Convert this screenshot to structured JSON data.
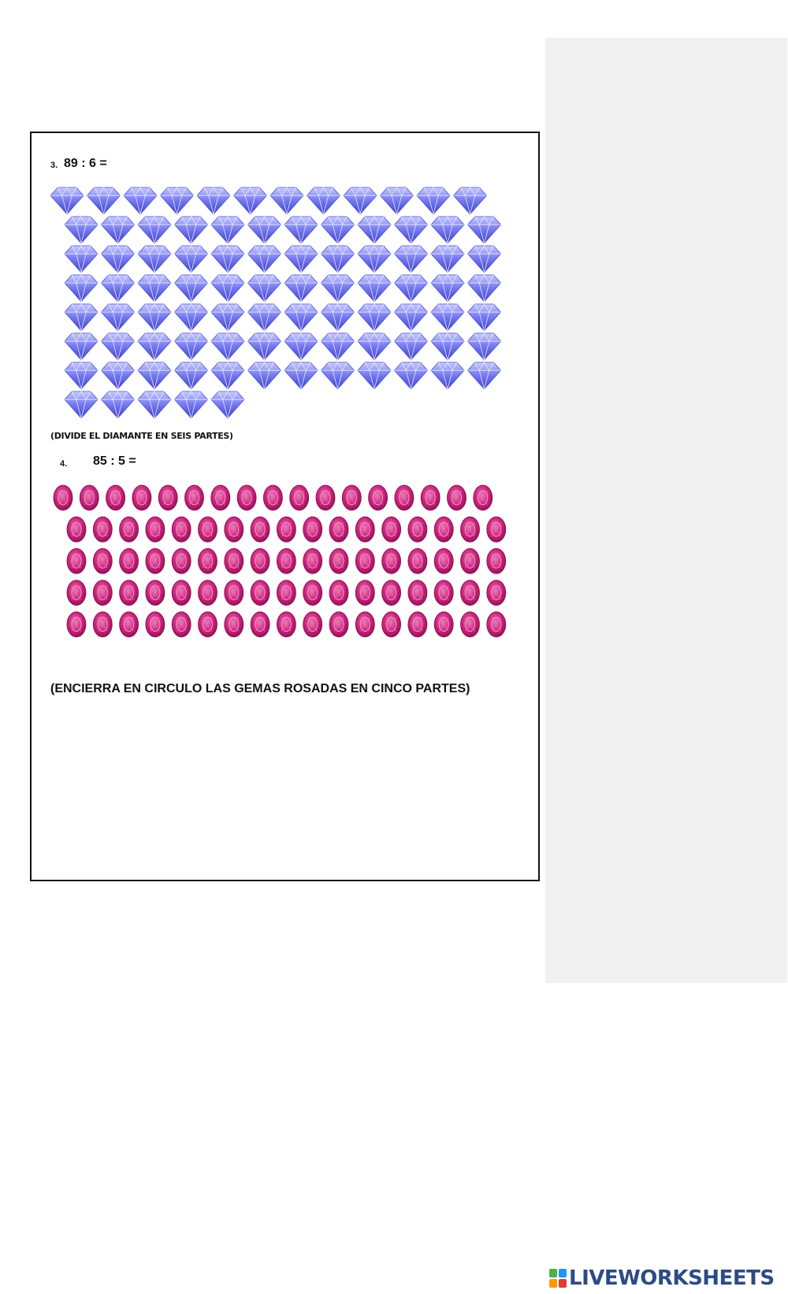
{
  "worksheet": {
    "question_3": {
      "number": "3.",
      "expression": "89 : 6 =",
      "gem_count": 89,
      "gem_color": "#6f74ee",
      "instruction": "(DIVIDE EL DIAMANTE EN SEIS PARTES)"
    },
    "question_4": {
      "number": "4.",
      "expression": "85 : 5 =",
      "gem_count": 85,
      "gem_color": "#c8207a",
      "instruction": "(ENCIERRA EN CIRCULO LAS GEMAS ROSADAS EN CINCO PARTES)"
    }
  },
  "brand": {
    "name": "LIVEWORKSHEETS",
    "text_color": "#2c4b86",
    "badge_colors": [
      "#4caf50",
      "#2196f3",
      "#ff9800",
      "#e53935"
    ]
  },
  "colors": {
    "page_background": "#ffffff",
    "side_panel": "#f1f1f1",
    "frame_border": "#111111"
  }
}
